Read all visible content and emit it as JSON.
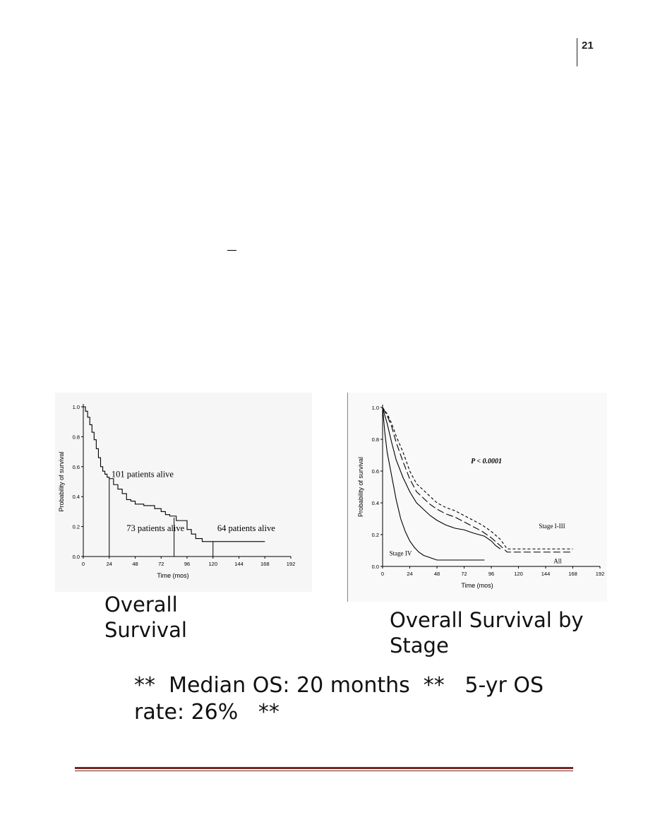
{
  "page": {
    "number": "21",
    "summary": "**  Median OS: 20 months  **   5-yr OS rate: 26%   **"
  },
  "colors": {
    "footer_rule": "#7a2420",
    "line": "#000000"
  },
  "chart_data": [
    {
      "type": "line",
      "caption": "Overall Survival",
      "xlabel": "Time (mos)",
      "ylabel": "Probability of survival",
      "xlim": [
        0,
        192
      ],
      "ylim": [
        0,
        1
      ],
      "xticks": [
        0,
        24,
        48,
        72,
        96,
        120,
        144,
        168,
        192
      ],
      "yticks": [
        0,
        0.2,
        0.4,
        0.6,
        0.8,
        1.0
      ],
      "series": [
        {
          "step": true,
          "x": [
            0,
            2,
            4,
            6,
            8,
            10,
            12,
            14,
            16,
            18,
            20,
            22,
            24,
            28,
            32,
            36,
            40,
            44,
            48,
            56,
            66,
            72,
            76,
            80,
            86,
            96,
            100,
            104,
            110,
            120,
            168
          ],
          "y": [
            1.0,
            0.97,
            0.93,
            0.88,
            0.83,
            0.78,
            0.72,
            0.66,
            0.6,
            0.57,
            0.55,
            0.53,
            0.52,
            0.48,
            0.45,
            0.42,
            0.38,
            0.37,
            0.35,
            0.34,
            0.32,
            0.3,
            0.28,
            0.27,
            0.24,
            0.18,
            0.15,
            0.12,
            0.1,
            0.1,
            0.1
          ]
        }
      ],
      "markers": [
        {
          "x": 24,
          "y": 0.52
        },
        {
          "x": 84,
          "y": 0.26
        },
        {
          "x": 120,
          "y": 0.1
        }
      ],
      "annotations": [
        {
          "text": "101 patients alive",
          "x": 26,
          "y": 0.53,
          "style": "normal"
        },
        {
          "text": "73 patients alive",
          "x": 40,
          "y": 0.17,
          "style": "normal"
        },
        {
          "text": "64 patients alive",
          "x": 124,
          "y": 0.17,
          "style": "normal"
        }
      ],
      "grid": false
    },
    {
      "type": "line",
      "caption": "Overall Survival by Stage",
      "xlabel": "Time (mos)",
      "ylabel": "Probability of survival",
      "xlim": [
        0,
        192
      ],
      "ylim": [
        0,
        1
      ],
      "xticks": [
        0,
        24,
        48,
        72,
        96,
        120,
        144,
        168,
        192
      ],
      "yticks": [
        0,
        0.2,
        0.4,
        0.6,
        0.8,
        1.0
      ],
      "series": [
        {
          "label": "Stage I-III",
          "dash": "4 3",
          "x": [
            0,
            4,
            8,
            12,
            18,
            24,
            30,
            36,
            42,
            48,
            56,
            64,
            72,
            80,
            88,
            96,
            104,
            110,
            168
          ],
          "y": [
            1.0,
            0.96,
            0.9,
            0.82,
            0.72,
            0.6,
            0.52,
            0.48,
            0.44,
            0.4,
            0.37,
            0.35,
            0.32,
            0.29,
            0.26,
            0.22,
            0.17,
            0.11,
            0.11
          ]
        },
        {
          "label": "All",
          "dash": "10 4",
          "x": [
            0,
            4,
            8,
            12,
            18,
            24,
            30,
            36,
            42,
            48,
            56,
            64,
            72,
            80,
            88,
            96,
            104,
            110,
            168
          ],
          "y": [
            1.0,
            0.95,
            0.88,
            0.78,
            0.66,
            0.55,
            0.47,
            0.43,
            0.39,
            0.36,
            0.33,
            0.31,
            0.28,
            0.25,
            0.22,
            0.18,
            0.13,
            0.09,
            0.09
          ]
        },
        {
          "label": "",
          "dash": "",
          "x": [
            0,
            4,
            8,
            12,
            18,
            24,
            30,
            36,
            42,
            48,
            56,
            64,
            72,
            80,
            90,
            96,
            100,
            104
          ],
          "y": [
            1.0,
            0.9,
            0.78,
            0.67,
            0.56,
            0.47,
            0.4,
            0.36,
            0.32,
            0.29,
            0.26,
            0.24,
            0.23,
            0.21,
            0.19,
            0.16,
            0.13,
            0.11
          ]
        },
        {
          "label": "Stage IV",
          "dash": "",
          "x": [
            0,
            2,
            4,
            8,
            12,
            16,
            20,
            24,
            28,
            32,
            36,
            40,
            44,
            48,
            90
          ],
          "y": [
            1.0,
            0.84,
            0.72,
            0.57,
            0.42,
            0.3,
            0.22,
            0.16,
            0.12,
            0.09,
            0.07,
            0.06,
            0.05,
            0.04,
            0.04
          ]
        }
      ],
      "annotations": [
        {
          "text": "P < 0.0001",
          "x": 78,
          "y": 0.65,
          "style": "italic-bold"
        },
        {
          "text": "Stage I-III",
          "x": 138,
          "y": 0.24,
          "style": "normal"
        },
        {
          "text": "Stage IV",
          "x": 6,
          "y": 0.07,
          "style": "normal"
        },
        {
          "text": "All",
          "x": 151,
          "y": 0.02,
          "style": "normal"
        }
      ],
      "grid": false
    }
  ]
}
